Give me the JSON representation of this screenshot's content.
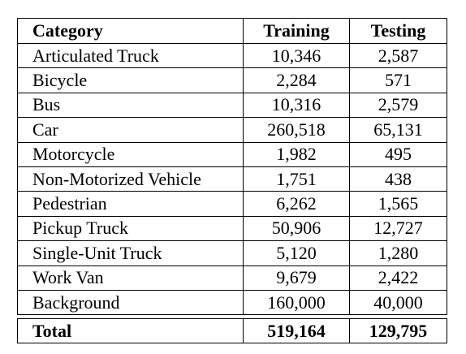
{
  "table": {
    "headers": [
      "Category",
      "Training",
      "Testing"
    ],
    "rows": [
      {
        "category": "Articulated Truck",
        "training": "10,346",
        "testing": "2,587"
      },
      {
        "category": "Bicycle",
        "training": "2,284",
        "testing": "571"
      },
      {
        "category": "Bus",
        "training": "10,316",
        "testing": "2,579"
      },
      {
        "category": "Car",
        "training": "260,518",
        "testing": "65,131"
      },
      {
        "category": "Motorcycle",
        "training": "1,982",
        "testing": "495"
      },
      {
        "category": "Non-Motorized Vehicle",
        "training": "1,751",
        "testing": "438"
      },
      {
        "category": "Pedestrian",
        "training": "6,262",
        "testing": "1,565"
      },
      {
        "category": "Pickup Truck",
        "training": "50,906",
        "testing": "12,727"
      },
      {
        "category": "Single-Unit Truck",
        "training": "5,120",
        "testing": "1,280"
      },
      {
        "category": "Work Van",
        "training": "9,679",
        "testing": "2,422"
      },
      {
        "category": "Background",
        "training": "160,000",
        "testing": "40,000"
      }
    ],
    "total": {
      "category": "Total",
      "training": "519,164",
      "testing": "129,795"
    }
  }
}
